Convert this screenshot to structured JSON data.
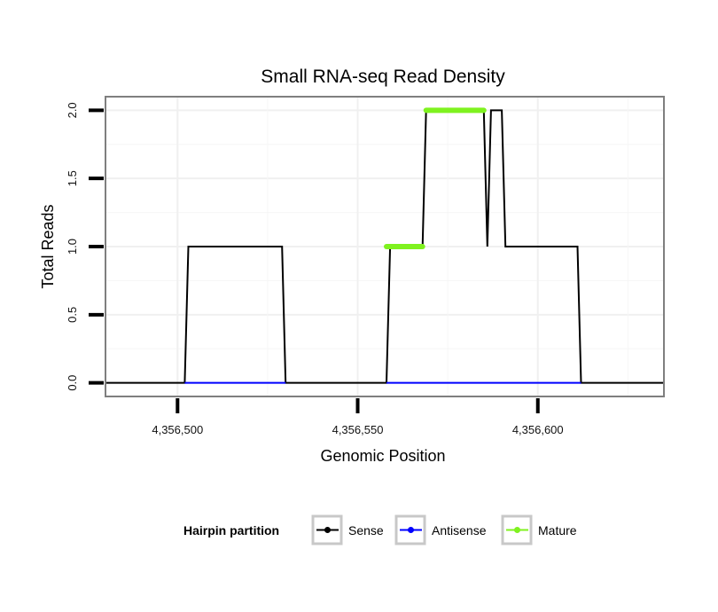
{
  "chart_data": {
    "type": "line",
    "title": "Small RNA-seq Read Density",
    "xlabel": "Genomic Position",
    "ylabel": "Total Reads",
    "xlim": [
      4356480,
      4356635
    ],
    "ylim": [
      -0.1,
      2.1
    ],
    "x_ticks": [
      4356500,
      4356550,
      4356600
    ],
    "x_tick_labels": [
      "4,356,500",
      "4,356,550",
      "4,356,600"
    ],
    "y_ticks": [
      0,
      0.5,
      1,
      1.5,
      2
    ],
    "y_tick_labels": [
      "0.0",
      "0.5",
      "1.0",
      "1.5",
      "2.0"
    ],
    "grid": true,
    "legend_title": "Hairpin partition",
    "legend_position": "bottom",
    "series": [
      {
        "name": "Sense",
        "color": "#000000",
        "x": [
          4356480,
          4356502,
          4356503,
          4356529,
          4356530,
          4356558,
          4356559,
          4356568,
          4356569,
          4356585,
          4356586,
          4356587,
          4356590,
          4356591,
          4356611,
          4356612,
          4356635
        ],
        "y": [
          0,
          0,
          1,
          1,
          0,
          0,
          1,
          1,
          2,
          2,
          1,
          2,
          2,
          1,
          1,
          0,
          0
        ]
      },
      {
        "name": "Antisense",
        "color": "#0000ff",
        "x": [
          4356502,
          4356530,
          4356558,
          4356612
        ],
        "y": [
          0,
          0,
          0,
          0
        ],
        "segments": [
          [
            0,
            1
          ],
          [
            2,
            3
          ]
        ]
      },
      {
        "name": "Mature",
        "color": "#7ff21f",
        "x": [
          4356558,
          4356568,
          4356569,
          4356585
        ],
        "y": [
          1,
          1,
          2,
          2
        ],
        "segments": [
          [
            0,
            1
          ],
          [
            2,
            3
          ]
        ]
      }
    ]
  }
}
